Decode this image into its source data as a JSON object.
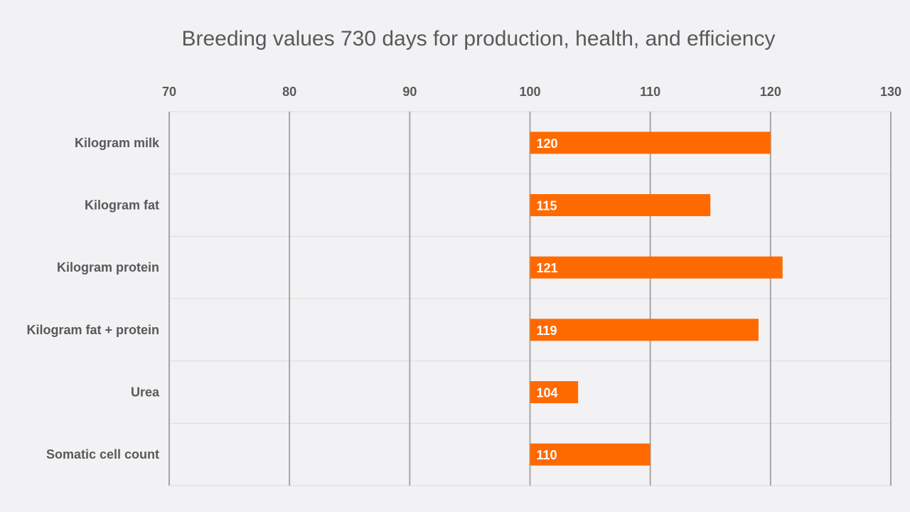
{
  "chart_data": {
    "type": "bar",
    "orientation": "horizontal",
    "title": "Breeding values 730 days for production, health, and efficiency",
    "categories": [
      "Kilogram milk",
      "Kilogram fat",
      "Kilogram protein",
      "Kilogram fat + protein",
      "Urea",
      "Somatic cell count"
    ],
    "values": [
      120,
      115,
      121,
      119,
      104,
      110
    ],
    "base": 100,
    "xlim": [
      70,
      130
    ],
    "xticks": [
      70,
      80,
      90,
      100,
      110,
      120,
      130
    ],
    "xaxis_position": "top",
    "grid": true,
    "bar_color": "#ff6a00",
    "xlabel": "",
    "ylabel": ""
  }
}
